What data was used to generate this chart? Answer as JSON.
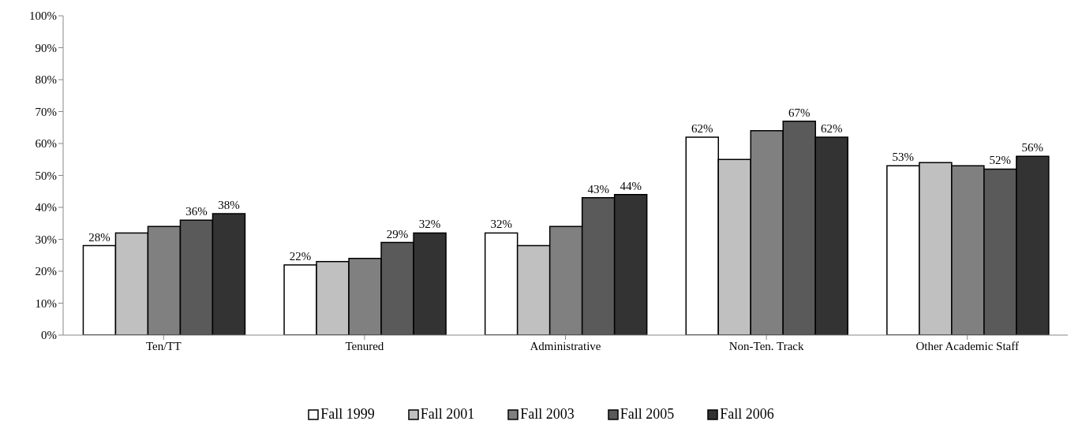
{
  "chart_data": {
    "type": "bar",
    "categories": [
      "Ten/TT",
      "Tenured",
      "Administrative",
      "Non-Ten. Track",
      "Other Academic Staff"
    ],
    "series": [
      {
        "name": "Fall 1999",
        "color": "#ffffff",
        "values": [
          28,
          22,
          32,
          62,
          53
        ],
        "value_labels": [
          "28%",
          "22%",
          "32%",
          "62%",
          "53%"
        ]
      },
      {
        "name": "Fall 2001",
        "color": "#c0c0c0",
        "values": [
          32,
          23,
          28,
          55,
          54
        ],
        "value_labels": [
          null,
          null,
          null,
          null,
          null
        ]
      },
      {
        "name": "Fall 2003",
        "color": "#808080",
        "values": [
          34,
          24,
          34,
          64,
          53
        ],
        "value_labels": [
          null,
          null,
          null,
          null,
          null
        ]
      },
      {
        "name": "Fall 2005",
        "color": "#5a5a5a",
        "values": [
          36,
          29,
          43,
          67,
          52
        ],
        "value_labels": [
          "36%",
          "29%",
          "43%",
          "67%",
          "52%"
        ]
      },
      {
        "name": "Fall 2006",
        "color": "#333333",
        "values": [
          38,
          32,
          44,
          62,
          56
        ],
        "value_labels": [
          "38%",
          "32%",
          "44%",
          "62%",
          "56%"
        ]
      }
    ],
    "ylim": [
      0,
      100
    ],
    "yticks": [
      {
        "value": 0,
        "label": "0%"
      },
      {
        "value": 10,
        "label": "10%"
      },
      {
        "value": 20,
        "label": "20%"
      },
      {
        "value": 30,
        "label": "30%"
      },
      {
        "value": 40,
        "label": "40%"
      },
      {
        "value": 50,
        "label": "50%"
      },
      {
        "value": 60,
        "label": "60%"
      },
      {
        "value": 70,
        "label": "70%"
      },
      {
        "value": 80,
        "label": "80%"
      },
      {
        "value": 90,
        "label": "90%"
      },
      {
        "value": 100,
        "label": "100%"
      }
    ],
    "grid": false,
    "legend": "bottom"
  }
}
